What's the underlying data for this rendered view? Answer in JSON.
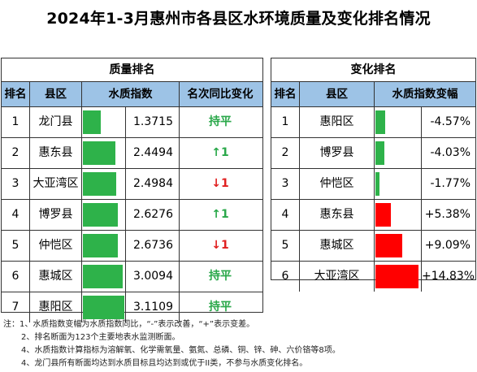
{
  "title": "2024年1-3月惠州市各县区水环境质量及变化排名情况",
  "colors": {
    "header_bg": "#9dc3e6",
    "bar_green": "#2eb24a",
    "bar_red": "#ff0000",
    "up_green": "#2aa84a",
    "down_red": "#e02020"
  },
  "left_panel": {
    "title": "质量排名",
    "headers": [
      "排名",
      "县区",
      "水质指数",
      "名次同比变化"
    ]
  },
  "right_panel": {
    "title": "变化排名",
    "headers": [
      "排名",
      "县区",
      "水质指数变幅"
    ]
  },
  "chart_data": [
    {
      "type": "table",
      "title": "质量排名",
      "columns": [
        "排名",
        "县区",
        "水质指数",
        "名次同比变化"
      ],
      "rows": [
        {
          "rank": "1",
          "county": "龙门县",
          "value": 1.3715,
          "value_text": "1.3715",
          "change": "持平",
          "change_dir": "flat"
        },
        {
          "rank": "2",
          "county": "惠东县",
          "value": 2.4494,
          "value_text": "2.4494",
          "change": "↑1",
          "change_dir": "up"
        },
        {
          "rank": "3",
          "county": "大亚湾区",
          "value": 2.4984,
          "value_text": "2.4984",
          "change": "↓1",
          "change_dir": "down"
        },
        {
          "rank": "4",
          "county": "博罗县",
          "value": 2.6276,
          "value_text": "2.6276",
          "change": "↑1",
          "change_dir": "up"
        },
        {
          "rank": "5",
          "county": "仲恺区",
          "value": 2.6736,
          "value_text": "2.6736",
          "change": "↓1",
          "change_dir": "down"
        },
        {
          "rank": "6",
          "county": "惠城区",
          "value": 3.0094,
          "value_text": "3.0094",
          "change": "持平",
          "change_dir": "flat"
        },
        {
          "rank": "7",
          "county": "惠阳区",
          "value": 3.1109,
          "value_text": "3.1109",
          "change": "持平",
          "change_dir": "flat"
        }
      ]
    },
    {
      "type": "table",
      "title": "变化排名",
      "columns": [
        "排名",
        "县区",
        "水质指数变幅"
      ],
      "rows": [
        {
          "rank": "1",
          "county": "惠阳区",
          "value": -4.57,
          "value_text": "-4.57%"
        },
        {
          "rank": "2",
          "county": "博罗县",
          "value": -4.03,
          "value_text": "-4.03%"
        },
        {
          "rank": "3",
          "county": "仲恺区",
          "value": -1.77,
          "value_text": "-1.77%"
        },
        {
          "rank": "4",
          "county": "惠东县",
          "value": 5.38,
          "value_text": "+5.38%"
        },
        {
          "rank": "5",
          "county": "惠城区",
          "value": 9.09,
          "value_text": "+9.09%"
        },
        {
          "rank": "6",
          "county": "大亚湾区",
          "value": 14.83,
          "value_text": "+14.83%"
        }
      ]
    }
  ],
  "notes": [
    "注：1、水质指数变幅为水质指数同比，“-”表示改善，“+”表示变差。",
    "2、排名断面为123个主要地表水监测断面。",
    "4、水质指数计算指标为溶解氧、化学需氧量、氨氮、总磷、铜、锌、砷、六价铬等8项。",
    "4、龙门县所有断面均达到水质目标且均达到或优于II类，不参与水质变化排名。"
  ]
}
